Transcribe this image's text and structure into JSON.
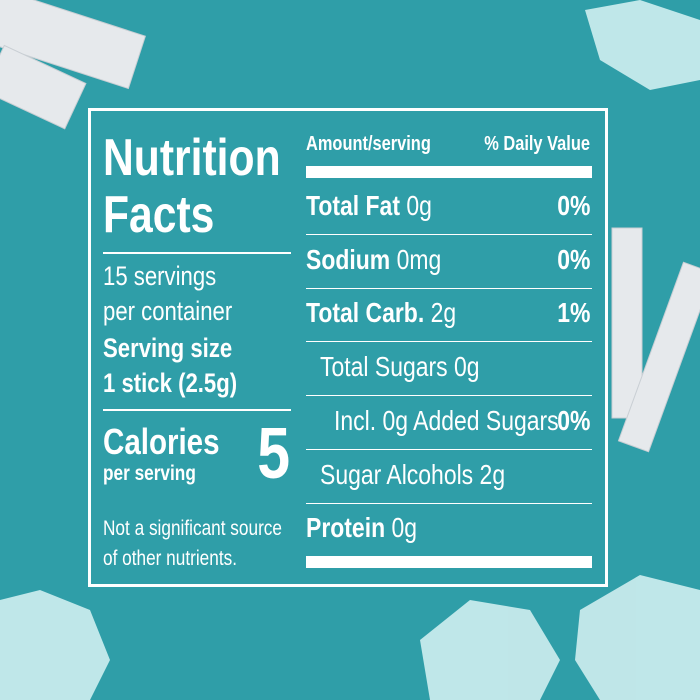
{
  "header": {
    "title": [
      "Nutrition",
      "Facts"
    ]
  },
  "servings": [
    "15 servings",
    "per container"
  ],
  "serving_size": {
    "label": "Serving size",
    "value": "1 stick (2.5g)"
  },
  "calories": {
    "label": "Calories",
    "sublabel": "per serving",
    "value": 5
  },
  "note": [
    "Not a significant source",
    "of other nutrients."
  ],
  "table": {
    "header": {
      "amount": "Amount/serving",
      "daily_value": "% Daily Value"
    },
    "rows": [
      {
        "name": "Total Fat",
        "amount": "0g",
        "daily_value": "0%",
        "bold": true,
        "indent": 0
      },
      {
        "name": "Sodium",
        "amount": "0mg",
        "daily_value": "0%",
        "bold": true,
        "indent": 0
      },
      {
        "name": "Total Carb.",
        "amount": "2g",
        "daily_value": "1%",
        "bold": true,
        "indent": 0
      },
      {
        "name": "Total Sugars",
        "amount": "0g",
        "bold": false,
        "indent": 1
      },
      {
        "name": "Incl. 0g Added Sugars",
        "daily_value": "0%",
        "bold": false,
        "indent": 2
      },
      {
        "name": "Sugar Alcohols",
        "amount": "2g",
        "bold": false,
        "indent": 1
      },
      {
        "name": "Protein",
        "amount": "0g",
        "bold": true,
        "indent": 0
      }
    ]
  }
}
